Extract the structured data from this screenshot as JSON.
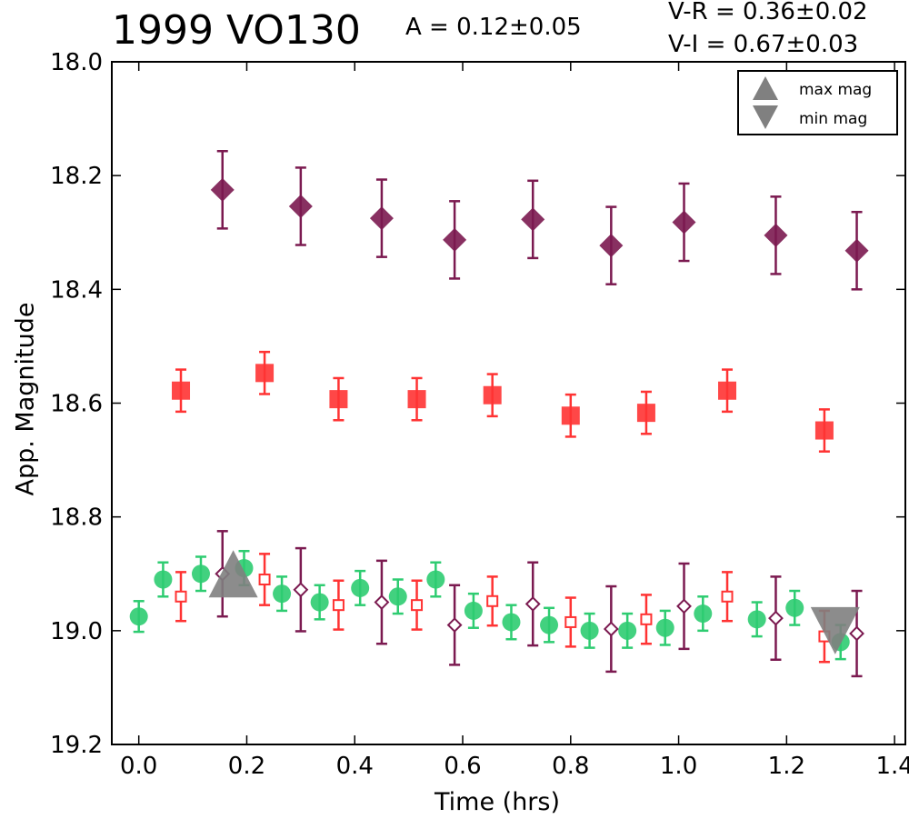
{
  "header": {
    "title": "1999 VO130",
    "amplitude": "A  = 0.12±0.05",
    "v_r": "V-R = 0.36±0.02",
    "v_i": "V-I  = 0.67±0.03"
  },
  "legend": {
    "max_label": "max mag",
    "min_label": "min mag"
  },
  "colors": {
    "V": "#2ecc71",
    "R": "#ff3333",
    "I": "#7b1a50",
    "marker_gray": "#808080"
  },
  "chart_data": {
    "type": "scatter",
    "title": "1999 VO130",
    "xlabel": "Time (hrs)",
    "ylabel": "App. Magnitude",
    "xlim": [
      -0.05,
      1.42
    ],
    "ylim": [
      18.0,
      19.2
    ],
    "y_inverted": true,
    "x_ticks": [
      "0.0",
      "0.2",
      "0.4",
      "0.6",
      "0.8",
      "1.0",
      "1.2",
      "1.4"
    ],
    "y_ticks": [
      "18.0",
      "18.2",
      "18.4",
      "18.6",
      "18.8",
      "19.0",
      "19.2"
    ],
    "legend_position": "top-right",
    "series": [
      {
        "color": "#2ecc71",
        "marker": "circle-filled",
        "x": [
          0.0,
          0.045,
          0.115,
          0.195,
          0.265,
          0.335,
          0.41,
          0.48,
          0.55,
          0.62,
          0.69,
          0.76,
          0.835,
          0.905,
          0.975,
          1.045,
          1.145,
          1.215,
          1.3
        ],
        "y": [
          18.975,
          18.91,
          18.9,
          18.89,
          18.935,
          18.95,
          18.925,
          18.94,
          18.91,
          18.965,
          18.985,
          18.99,
          19.0,
          19.0,
          18.995,
          18.97,
          18.98,
          18.96,
          19.02
        ],
        "err": [
          0.027,
          0.03,
          0.03,
          0.03,
          0.03,
          0.03,
          0.03,
          0.03,
          0.03,
          0.03,
          0.03,
          0.03,
          0.03,
          0.03,
          0.03,
          0.03,
          0.03,
          0.03,
          0.03
        ]
      },
      {
        "color": "#ff3333",
        "marker": "square-filled",
        "x": [
          0.078,
          0.233,
          0.37,
          0.515,
          0.655,
          0.8,
          0.94,
          1.09,
          1.27
        ],
        "y": [
          18.578,
          18.547,
          18.593,
          18.593,
          18.586,
          18.622,
          18.617,
          18.578,
          18.648
        ],
        "err": [
          0.037,
          0.037,
          0.037,
          0.037,
          0.037,
          0.037,
          0.037,
          0.037,
          0.037
        ]
      },
      {
        "color": "#7b1a50",
        "marker": "diamond-filled",
        "x": [
          0.155,
          0.3,
          0.45,
          0.585,
          0.73,
          0.875,
          1.01,
          1.18,
          1.33
        ],
        "y": [
          18.225,
          18.254,
          18.275,
          18.313,
          18.277,
          18.323,
          18.282,
          18.305,
          18.332
        ],
        "err": [
          0.068,
          0.068,
          0.068,
          0.068,
          0.068,
          0.068,
          0.068,
          0.068,
          0.068
        ]
      },
      {
        "color": "#ff3333",
        "marker": "square-open",
        "x": [
          0.078,
          0.233,
          0.37,
          0.515,
          0.655,
          0.8,
          0.94,
          1.09,
          1.27
        ],
        "y": [
          18.94,
          18.91,
          18.955,
          18.955,
          18.948,
          18.985,
          18.98,
          18.94,
          19.01
        ],
        "err": [
          0.043,
          0.045,
          0.043,
          0.043,
          0.043,
          0.043,
          0.043,
          0.043,
          0.045
        ]
      },
      {
        "color": "#7b1a50",
        "marker": "diamond-open",
        "x": [
          0.155,
          0.3,
          0.45,
          0.585,
          0.73,
          0.875,
          1.01,
          1.18,
          1.33
        ],
        "y": [
          18.9,
          18.928,
          18.95,
          18.99,
          18.953,
          18.997,
          18.957,
          18.978,
          19.005
        ],
        "err": [
          0.075,
          0.073,
          0.073,
          0.07,
          0.073,
          0.075,
          0.075,
          0.073,
          0.075
        ]
      }
    ],
    "markers": [
      {
        "label": "max mag",
        "x": 0.175,
        "y": 18.9,
        "shape": "triangle-up"
      },
      {
        "label": "min mag",
        "x": 1.29,
        "y": 19.0,
        "shape": "triangle-down"
      }
    ]
  }
}
